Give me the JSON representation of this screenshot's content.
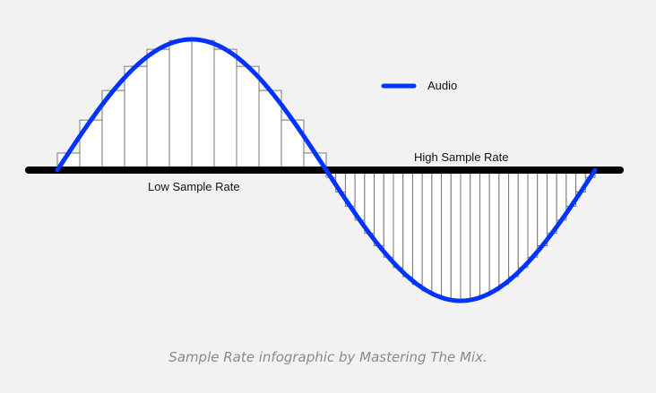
{
  "legend": {
    "label": "Audio"
  },
  "labels": {
    "low": "Low Sample Rate",
    "high": "High Sample Rate"
  },
  "caption": "Sample Rate infographic by Mastering The Mix.",
  "colors": {
    "audio": "#0033ff",
    "axis": "#000000",
    "bars_stroke": "#777777",
    "bars_fill": "#ffffff",
    "background": "#f2f2f2",
    "caption": "#8a8a8a"
  },
  "sampling": {
    "low_rate_samples_per_half_cycle": 12,
    "high_rate_samples_per_half_cycle": 28
  }
}
